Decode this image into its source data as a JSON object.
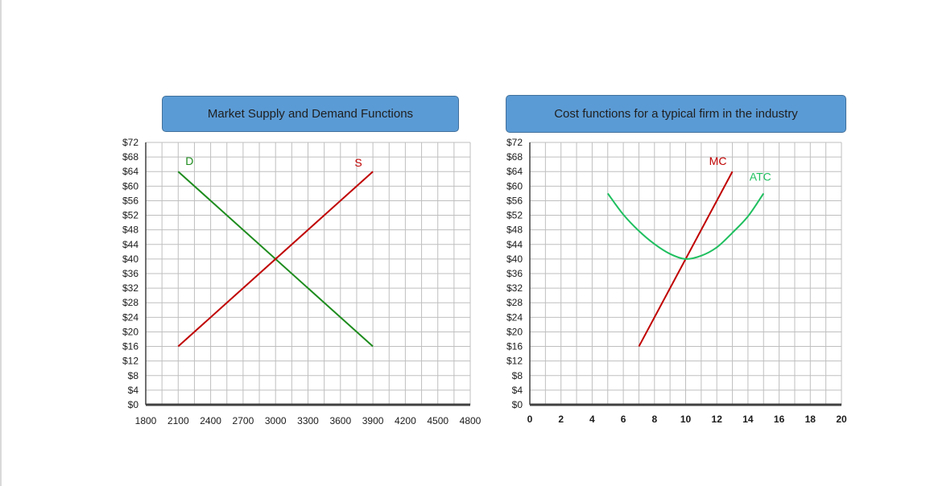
{
  "chart_data": [
    {
      "type": "line",
      "title": "Market Supply and Demand Functions",
      "x_ticks": [
        "1800",
        "2100",
        "2400",
        "2700",
        "3000",
        "3300",
        "3600",
        "3900",
        "4200",
        "4500",
        "4800"
      ],
      "y_ticks": [
        "$0",
        "$4",
        "$8",
        "$12",
        "$16",
        "$20",
        "$24",
        "$28",
        "$32",
        "$36",
        "$40",
        "$44",
        "$48",
        "$52",
        "$56",
        "$60",
        "$64",
        "$68",
        "$72"
      ],
      "xlim": [
        1800,
        4800
      ],
      "ylim": [
        0,
        72
      ],
      "grid": true,
      "series": [
        {
          "name": "D",
          "color": "#1e8c1e",
          "points": [
            [
              2100,
              64
            ],
            [
              3900,
              16
            ]
          ]
        },
        {
          "name": "S",
          "color": "#c00000",
          "points": [
            [
              2100,
              16
            ],
            [
              3900,
              64
            ]
          ]
        }
      ]
    },
    {
      "type": "line",
      "title": "Cost functions for a typical firm in the industry",
      "x_ticks": [
        "0",
        "2",
        "4",
        "6",
        "8",
        "10",
        "12",
        "14",
        "16",
        "18",
        "20"
      ],
      "y_ticks": [
        "$0",
        "$4",
        "$8",
        "$12",
        "$16",
        "$20",
        "$24",
        "$28",
        "$32",
        "$36",
        "$40",
        "$44",
        "$48",
        "$52",
        "$56",
        "$60",
        "$64",
        "$68",
        "$72"
      ],
      "xlim": [
        0,
        20
      ],
      "ylim": [
        0,
        72
      ],
      "grid": true,
      "series": [
        {
          "name": "MC",
          "color": "#c00000",
          "points": [
            [
              7,
              16
            ],
            [
              13,
              64
            ]
          ]
        },
        {
          "name": "ATC",
          "color": "#1fbf5f",
          "points": [
            [
              5,
              58
            ],
            [
              6,
              52.2
            ],
            [
              7,
              47.7
            ],
            [
              8,
              44.1
            ],
            [
              9,
              41.4
            ],
            [
              10,
              40
            ],
            [
              11,
              40.9
            ],
            [
              12,
              43.2
            ],
            [
              13,
              47.2
            ],
            [
              14,
              51.7
            ],
            [
              15,
              58
            ]
          ]
        }
      ]
    }
  ]
}
